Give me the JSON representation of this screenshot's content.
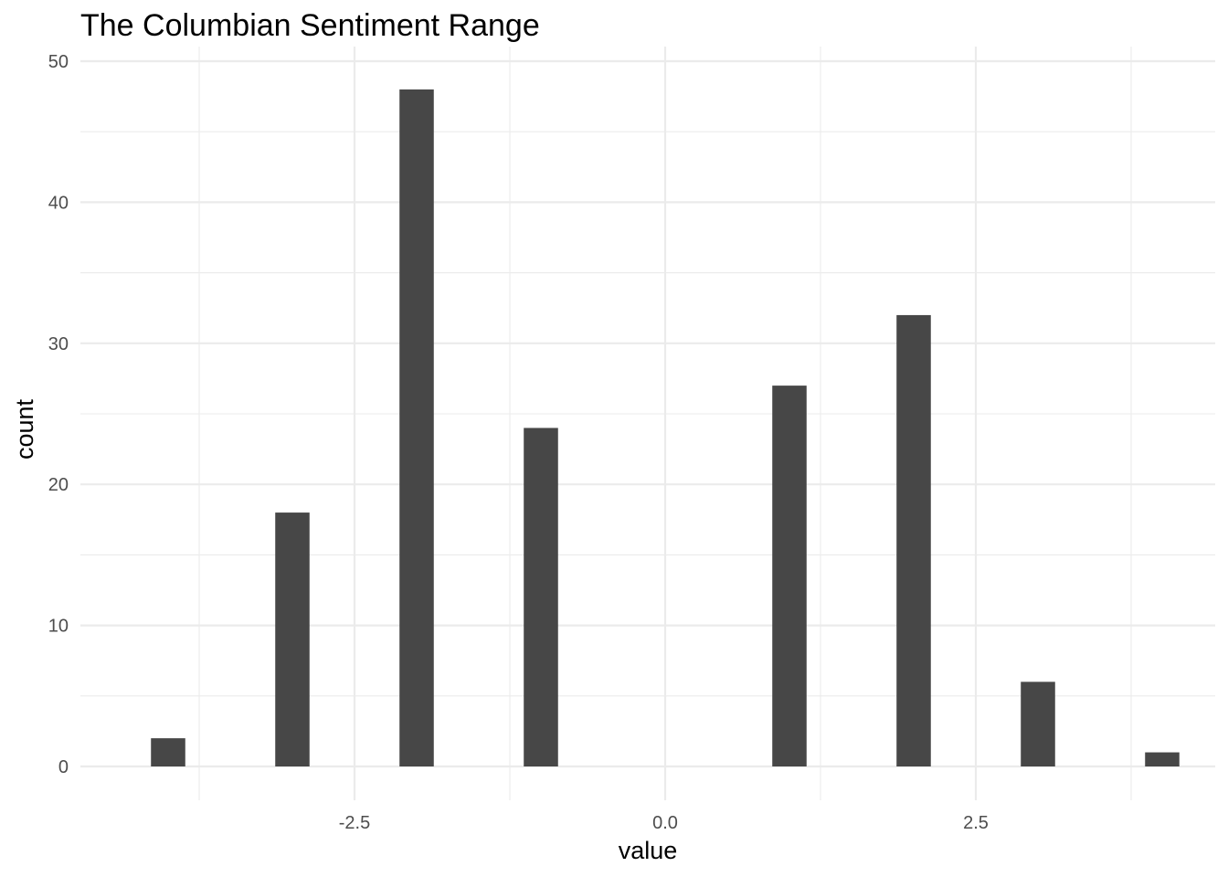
{
  "chart_data": {
    "type": "bar",
    "title": "The Columbian Sentiment Range",
    "xlabel": "value",
    "ylabel": "count",
    "xlim": [
      -4.2,
      4.2
    ],
    "ylim": [
      0,
      50
    ],
    "x_ticks": [
      -2.5,
      0.0,
      2.5
    ],
    "x_tick_labels": [
      "-2.5",
      "0.0",
      "2.5"
    ],
    "y_ticks": [
      0,
      10,
      20,
      30,
      40,
      50
    ],
    "y_tick_labels": [
      "0",
      "10",
      "20",
      "30",
      "40",
      "50"
    ],
    "grid": true,
    "bar_color": "#474747",
    "bin_width": 0.276,
    "x": [
      -4,
      -3,
      -2,
      -1,
      1,
      2,
      3,
      4
    ],
    "values": [
      2,
      18,
      48,
      24,
      27,
      32,
      6,
      1
    ]
  }
}
